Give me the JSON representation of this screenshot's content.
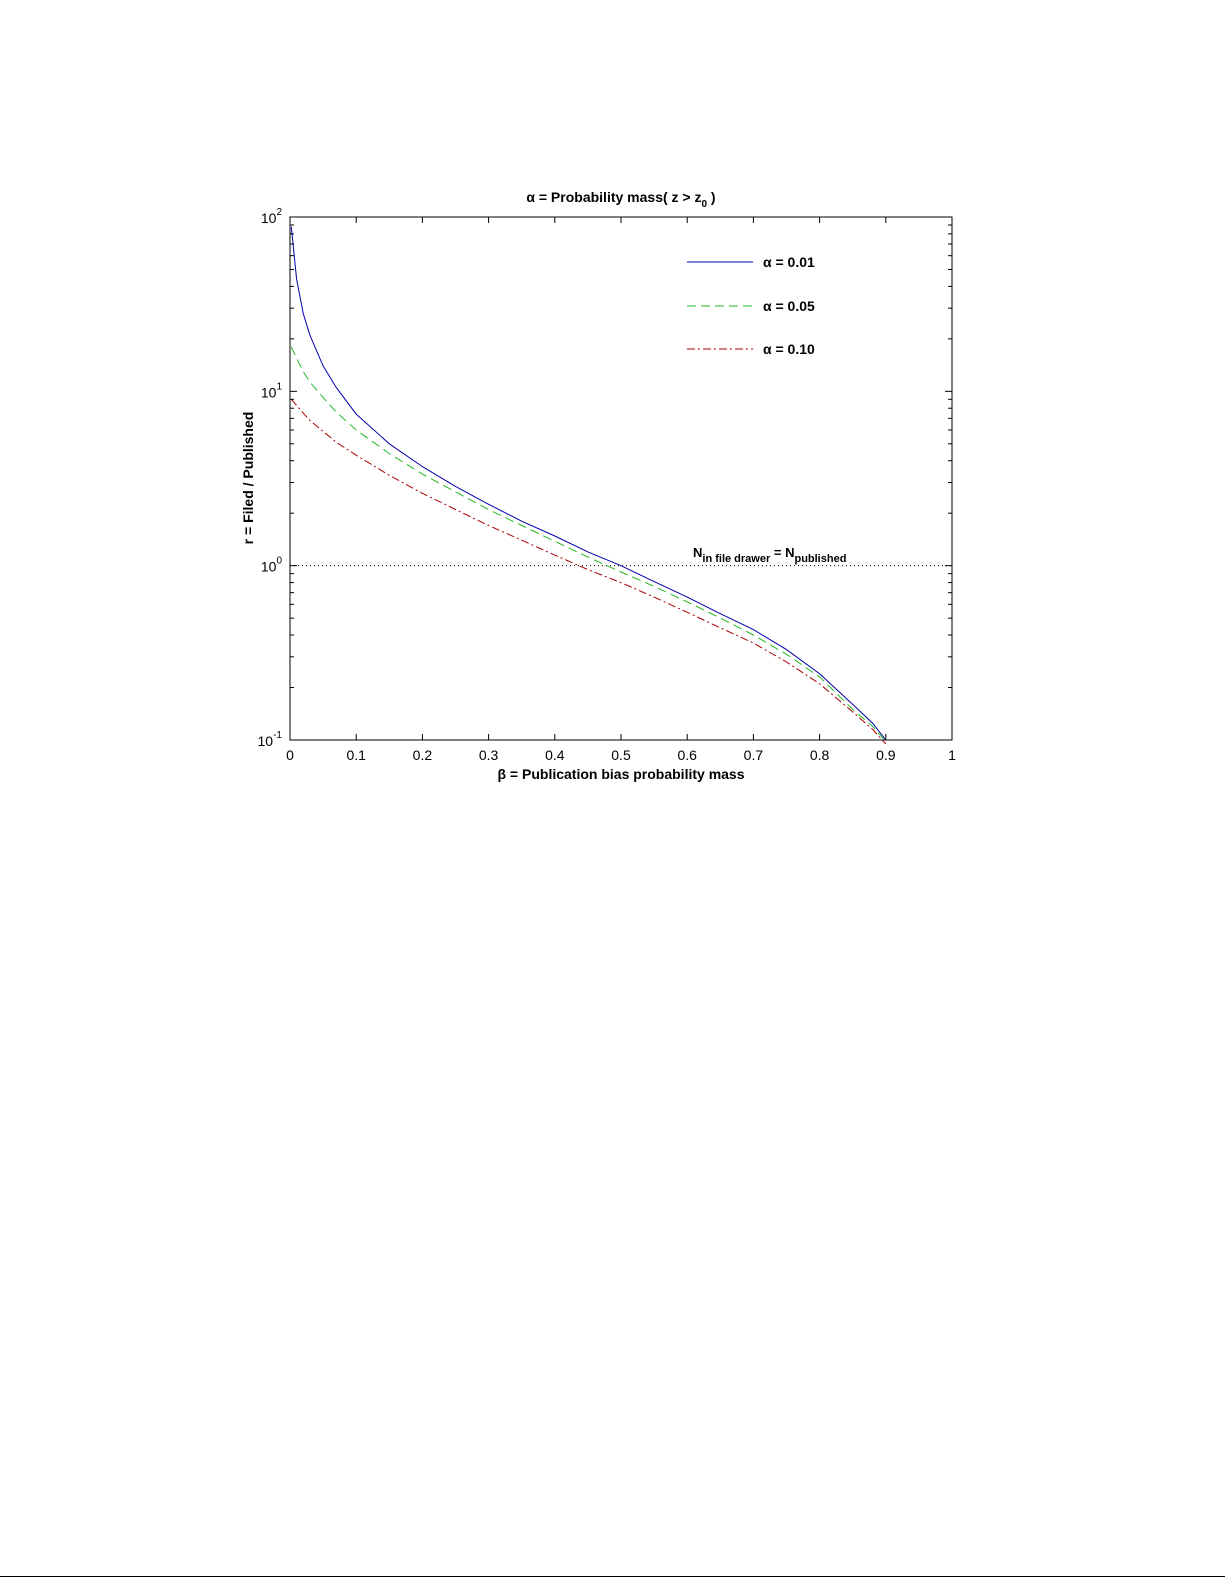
{
  "chart_data": {
    "type": "line",
    "title": {
      "prefix": "α = Probability mass( z > z",
      "sub": "0",
      "suffix": " )"
    },
    "xlabel": "β = Publication bias probability mass",
    "ylabel": "r =  Filed / Published",
    "xlim": [
      0,
      1
    ],
    "ylim": [
      0.1,
      100
    ],
    "yscale": "log",
    "x_ticks": [
      "0",
      "0.1",
      "0.2",
      "0.3",
      "0.4",
      "0.5",
      "0.6",
      "0.7",
      "0.8",
      "0.9",
      "1"
    ],
    "y_ticks": [
      {
        "base": "10",
        "exp": "-1"
      },
      {
        "base": "10",
        "exp": "0"
      },
      {
        "base": "10",
        "exp": "1"
      },
      {
        "base": "10",
        "exp": "2"
      }
    ],
    "grid": false,
    "legend_position": "top-right",
    "series": [
      {
        "name": "α = 0.01",
        "color": "#0000aa",
        "dash": "solid",
        "x": [
          0.002,
          0.01,
          0.02,
          0.03,
          0.05,
          0.07,
          0.1,
          0.15,
          0.2,
          0.25,
          0.3,
          0.35,
          0.4,
          0.45,
          0.5,
          0.55,
          0.6,
          0.65,
          0.7,
          0.75,
          0.8,
          0.85,
          0.88,
          0.9
        ],
        "y": [
          88,
          44,
          28,
          21,
          14,
          10.5,
          7.4,
          5.0,
          3.7,
          2.85,
          2.25,
          1.8,
          1.48,
          1.2,
          1.0,
          0.81,
          0.66,
          0.53,
          0.43,
          0.33,
          0.24,
          0.16,
          0.125,
          0.1
        ]
      },
      {
        "name": "α = 0.05",
        "color": "#22bb22",
        "dash": "dashed",
        "x": [
          0.002,
          0.01,
          0.02,
          0.03,
          0.05,
          0.07,
          0.1,
          0.15,
          0.2,
          0.25,
          0.3,
          0.35,
          0.4,
          0.45,
          0.5,
          0.55,
          0.6,
          0.65,
          0.7,
          0.75,
          0.8,
          0.85,
          0.88,
          0.9
        ],
        "y": [
          18,
          15.5,
          13,
          11.3,
          9.2,
          7.6,
          6.0,
          4.4,
          3.35,
          2.65,
          2.1,
          1.7,
          1.38,
          1.12,
          0.92,
          0.76,
          0.62,
          0.5,
          0.4,
          0.31,
          0.23,
          0.15,
          0.12,
          0.098
        ]
      },
      {
        "name": "α = 0.10",
        "color": "#aa0000",
        "dash": "dashdot",
        "x": [
          0.002,
          0.01,
          0.02,
          0.03,
          0.05,
          0.07,
          0.1,
          0.15,
          0.2,
          0.25,
          0.3,
          0.35,
          0.4,
          0.45,
          0.5,
          0.55,
          0.6,
          0.65,
          0.7,
          0.75,
          0.8,
          0.85,
          0.88,
          0.9
        ],
        "y": [
          9.0,
          8.3,
          7.5,
          6.8,
          5.9,
          5.1,
          4.3,
          3.3,
          2.6,
          2.1,
          1.7,
          1.4,
          1.15,
          0.95,
          0.8,
          0.66,
          0.54,
          0.44,
          0.36,
          0.28,
          0.21,
          0.145,
          0.115,
          0.095
        ]
      }
    ],
    "reference_line": {
      "y": 1,
      "style": "dotted",
      "label": {
        "n1": "N",
        "sub1": "in file drawer",
        "eq": " = N",
        "sub2": "published"
      }
    }
  }
}
